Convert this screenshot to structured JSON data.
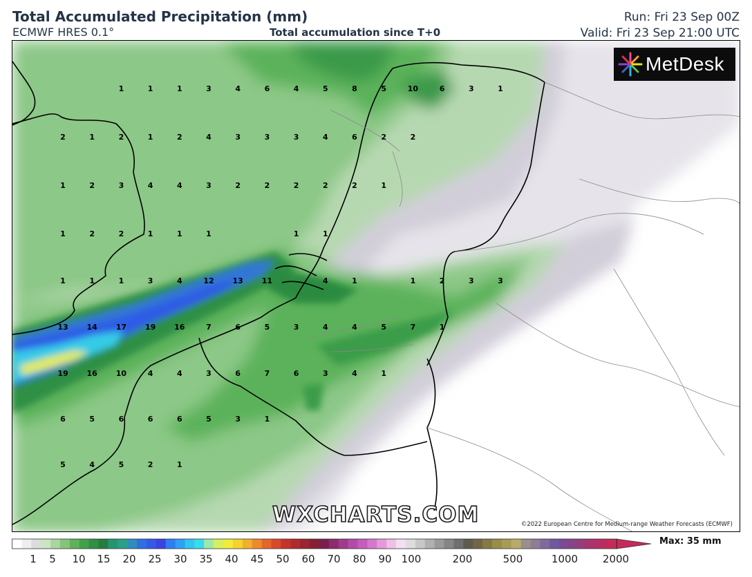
{
  "header": {
    "title": "Total Accumulated Precipitation (mm)",
    "model": "ECMWF HRES 0.1°",
    "subtitle": "Total accumulation since T+0",
    "run": "Run: Fri 23 Sep 00Z",
    "valid": "Valid: Fri 23 Sep 21:00 UTC"
  },
  "logo": {
    "text": "MetDesk"
  },
  "watermark": "WXCHARTS.COM",
  "copyright": "©2022 European Centre for Medium-range Weather Forecasts (ECMWF)",
  "legend": {
    "max_label": "Max: 35 mm",
    "ticks": [
      "1",
      "5",
      "10",
      "15",
      "20",
      "25",
      "30",
      "35",
      "40",
      "45",
      "50",
      "60",
      "70",
      "80",
      "90",
      "100",
      "200",
      "500",
      "1000",
      "2000"
    ]
  },
  "colors": {
    "light_green": "#b4d6ae",
    "mid_green": "#7fc07a",
    "green": "#56ad55",
    "dark_green": "#2e8d3d",
    "blue": "#2d63e6",
    "cyan": "#33d6f2",
    "yellow": "#e7ee55",
    "grey_light": "#e8e6ec",
    "grey": "#cfcbd6"
  },
  "grid_values": [
    [
      "1",
      "1",
      "1",
      "3",
      "4",
      "6",
      "4",
      "5",
      "8",
      "5",
      "10",
      "6",
      "3",
      "1"
    ],
    [
      "2",
      "1",
      "2",
      "1",
      "2",
      "4",
      "3",
      "3",
      "3",
      "4",
      "6",
      "2",
      "2"
    ],
    [
      "1",
      "2",
      "3",
      "4",
      "4",
      "3",
      "2",
      "2",
      "2",
      "2",
      "2",
      "1"
    ],
    [
      "1",
      "2",
      "2",
      "1",
      "1",
      "1",
      "1",
      "1"
    ],
    [
      "1",
      "1",
      "1",
      "3",
      "4",
      "12",
      "13",
      "11",
      "4",
      "1",
      "1",
      "2",
      "3",
      "3"
    ],
    [
      "13",
      "14",
      "17",
      "19",
      "16",
      "7",
      "6",
      "5",
      "3",
      "4",
      "4",
      "5",
      "7",
      "1"
    ],
    [
      "19",
      "16",
      "10",
      "4",
      "4",
      "3",
      "6",
      "7",
      "6",
      "3",
      "4",
      "1"
    ],
    [
      "6",
      "5",
      "6",
      "6",
      "6",
      "5",
      "3",
      "1"
    ],
    [
      "5",
      "4",
      "5",
      "2",
      "1"
    ]
  ]
}
